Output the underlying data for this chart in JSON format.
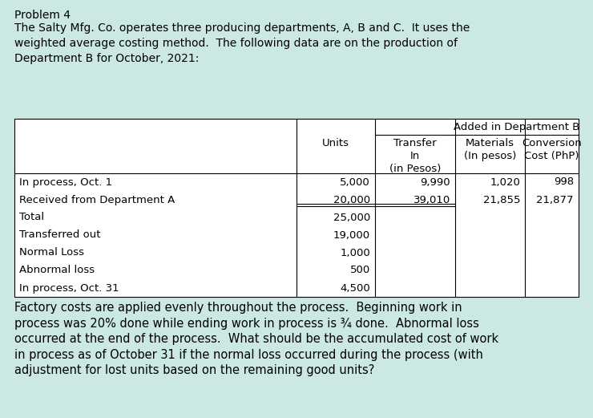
{
  "title": "Problem 4",
  "intro_text": "The Salty Mfg. Co. operates three producing departments, A, B and C.  It uses the\nweighted average costing method.  The following data are on the production of\nDepartment B for October, 2021:",
  "bg_color": "#cce8e4",
  "header_added": "Added in Department B",
  "header_units": "Units",
  "header_transfer": "Transfer\nIn\n(in Pesos)",
  "header_materials": "Materials\n(In pesos)",
  "header_conversion": "Conversion\nCost (PhP)",
  "data_rows": [
    [
      "In process, Oct. 1",
      "5,000",
      "9,990",
      "1,020",
      "998"
    ],
    [
      "Received from Department A",
      "20,000",
      "39,010",
      "21,855",
      "21,877"
    ],
    [
      "Total",
      "25,000",
      "",
      "",
      ""
    ],
    [
      "Transferred out",
      "19,000",
      "",
      "",
      ""
    ],
    [
      "Normal Loss",
      "1,000",
      "",
      "",
      ""
    ],
    [
      "Abnormal loss",
      "500",
      "",
      "",
      ""
    ],
    [
      "In process, Oct. 31",
      "4,500",
      "",
      "",
      ""
    ]
  ],
  "footer_text": "Factory costs are applied evenly throughout the process.  Beginning work in\nprocess was 20% done while ending work in process is ¾ done.  Abnormal loss\noccurred at the end of the process.  What should be the accumulated cost of work\nin process as of October 31 if the normal loss occurred during the process (with\nadjustment for lost units based on the remaining good units?",
  "font_size_title": 10,
  "font_size_intro": 10,
  "font_size_table": 9.5,
  "font_size_footer": 10.5
}
